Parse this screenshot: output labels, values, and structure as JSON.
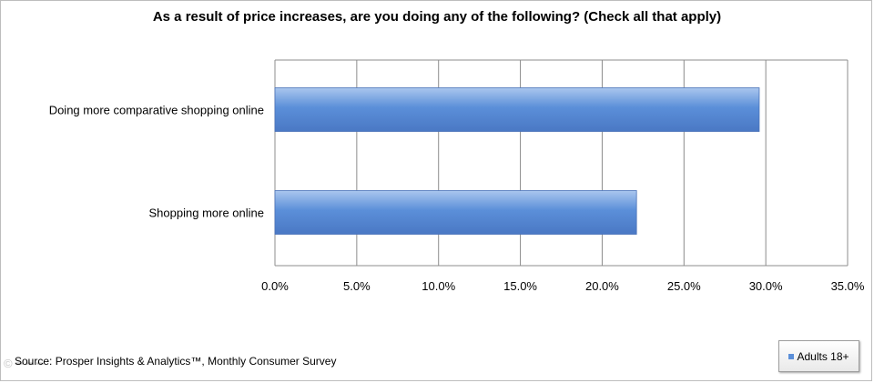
{
  "chart_data": {
    "type": "bar",
    "orientation": "horizontal",
    "title": "As a result of price increases, are you doing any of the following? (Check all that apply)",
    "categories": [
      "Doing more comparative shopping online",
      "Shopping more online"
    ],
    "series": [
      {
        "name": "Adults 18+",
        "values": [
          29.6,
          22.1
        ]
      }
    ],
    "xlim": [
      0,
      35
    ],
    "x_ticks": [
      "0.0%",
      "5.0%",
      "10.0%",
      "15.0%",
      "20.0%",
      "25.0%",
      "30.0%",
      "35.0%"
    ],
    "grid": "vertical",
    "legend_position": "bottom-right",
    "bar_color": "#5b8fd9",
    "source": "Source: Prosper Insights & Analytics™, Monthly Consumer Survey"
  }
}
